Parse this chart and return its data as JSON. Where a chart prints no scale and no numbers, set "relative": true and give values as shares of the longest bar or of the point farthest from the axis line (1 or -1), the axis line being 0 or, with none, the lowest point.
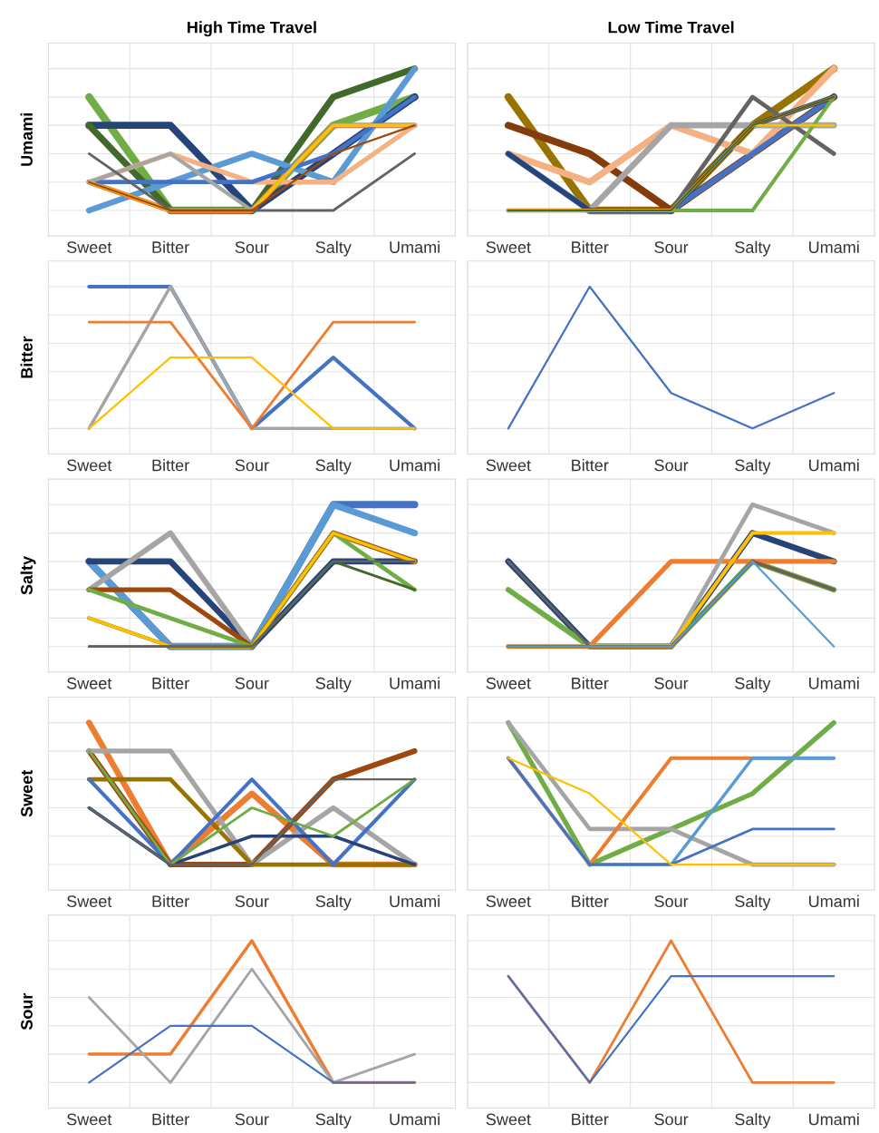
{
  "chart_data": [
    {
      "type": "line",
      "title": "High Time Travel",
      "ylabel": "Umami",
      "relative": true,
      "grid": true,
      "tick_labels": "x",
      "line_style": "solid",
      "categories": [
        "Sweet",
        "Bitter",
        "Sour",
        "Salty",
        "Umami"
      ],
      "series": [
        {
          "color": "#70ad47",
          "values": [
            0.8,
            0,
            0,
            0.6,
            0.8
          ]
        },
        {
          "color": "#264478",
          "values": [
            0.6,
            0.6,
            0,
            0.4,
            0.8
          ]
        },
        {
          "color": "#43682b",
          "values": [
            0.6,
            0,
            0,
            0.8,
            1
          ]
        },
        {
          "color": "#5b9bd5",
          "values": [
            0,
            0.2,
            0.4,
            0.2,
            1
          ]
        },
        {
          "color": "#ed7d31",
          "values": [
            0.2,
            0,
            0,
            0.6,
            0.6
          ]
        },
        {
          "color": "#f4b183",
          "values": [
            0.2,
            0.4,
            0.2,
            0.2,
            0.6
          ]
        },
        {
          "color": "#4472c4",
          "values": [
            0.2,
            0.2,
            0.2,
            0.4,
            0.8
          ]
        },
        {
          "color": "#a5a5a5",
          "values": [
            0.2,
            0.4,
            0,
            0.6,
            0.6
          ]
        },
        {
          "color": "#ffc000",
          "values": [
            0.2,
            0,
            0,
            0.6,
            0.6
          ]
        },
        {
          "color": "#636363",
          "values": [
            0.4,
            0,
            0,
            0,
            0.4
          ]
        },
        {
          "color": "#9e480e",
          "values": [
            0.2,
            0,
            0,
            0.4,
            0.6
          ]
        }
      ]
    },
    {
      "type": "line",
      "title": "Low Time Travel",
      "relative": true,
      "grid": true,
      "tick_labels": "x",
      "line_style": "solid",
      "categories": [
        "Sweet",
        "Bitter",
        "Sour",
        "Salty",
        "Umami"
      ],
      "series": [
        {
          "color": "#997300",
          "values": [
            0.8,
            0,
            0,
            0.6,
            1
          ]
        },
        {
          "color": "#843c0c",
          "values": [
            0.6,
            0.4,
            0,
            0.4,
            0.8
          ]
        },
        {
          "color": "#f4b183",
          "values": [
            0.4,
            0.2,
            0.6,
            0.4,
            1
          ]
        },
        {
          "color": "#a5a5a5",
          "values": [
            0.4,
            0,
            0.6,
            0.6,
            0.6
          ]
        },
        {
          "color": "#4472c4",
          "values": [
            0.4,
            0,
            0,
            0.4,
            0.8
          ]
        },
        {
          "color": "#264478",
          "values": [
            0.4,
            0,
            0,
            0.6,
            0.8
          ]
        },
        {
          "color": "#636363",
          "values": [
            0,
            0,
            0,
            0.8,
            0.4
          ]
        },
        {
          "color": "#70ad47",
          "values": [
            0,
            0,
            0,
            0,
            0.8
          ]
        },
        {
          "color": "#ed7d31",
          "values": [
            0,
            0,
            0,
            0.6,
            0.8
          ]
        },
        {
          "color": "#ffc000",
          "values": [
            0,
            0,
            0,
            0.6,
            0.6
          ]
        },
        {
          "color": "#43682b",
          "values": [
            0,
            0,
            0,
            0.6,
            0.8
          ]
        }
      ]
    },
    {
      "type": "line",
      "ylabel": "Bitter",
      "relative": true,
      "grid": true,
      "tick_labels": "x",
      "line_style": "solid",
      "categories": [
        "Sweet",
        "Bitter",
        "Sour",
        "Salty",
        "Umami"
      ],
      "series": [
        {
          "color": "#4472c4",
          "values": [
            1,
            1,
            0,
            0.5,
            0
          ]
        },
        {
          "color": "#a5a5a5",
          "values": [
            0,
            1,
            0,
            0,
            0
          ]
        },
        {
          "color": "#ed7d31",
          "values": [
            0.75,
            0.75,
            0,
            0.75,
            0.75
          ]
        },
        {
          "color": "#ffc000",
          "values": [
            0,
            0.5,
            0.5,
            0,
            0
          ]
        }
      ]
    },
    {
      "type": "line",
      "relative": true,
      "grid": true,
      "tick_labels": "x",
      "line_style": "solid",
      "categories": [
        "Sweet",
        "Bitter",
        "Sour",
        "Salty",
        "Umami"
      ],
      "series": [
        {
          "color": "#4472c4",
          "values": [
            0,
            1,
            0.25,
            0,
            0.25
          ]
        }
      ]
    },
    {
      "type": "line",
      "ylabel": "Salty",
      "relative": true,
      "grid": true,
      "tick_labels": "x",
      "line_style": "solid",
      "categories": [
        "Sweet",
        "Bitter",
        "Sour",
        "Salty",
        "Umami"
      ],
      "series": [
        {
          "color": "#4472c4",
          "values": [
            0.6,
            0,
            0,
            1,
            1
          ]
        },
        {
          "color": "#5b9bd5",
          "values": [
            0.6,
            0,
            0,
            1,
            0.8
          ]
        },
        {
          "color": "#264478",
          "values": [
            0.6,
            0.6,
            0,
            0.6,
            0.6
          ]
        },
        {
          "color": "#a5a5a5",
          "values": [
            0.4,
            0.8,
            0,
            0.8,
            0.6
          ]
        },
        {
          "color": "#9e480e",
          "values": [
            0.4,
            0.4,
            0,
            0.8,
            0.6
          ]
        },
        {
          "color": "#70ad47",
          "values": [
            0.4,
            0.2,
            0,
            0.8,
            0.4
          ]
        },
        {
          "color": "#997300",
          "values": [
            0.2,
            0,
            0,
            0.8,
            0.6
          ]
        },
        {
          "color": "#ffc000",
          "values": [
            0.2,
            0,
            0,
            0.8,
            0.6
          ]
        },
        {
          "color": "#43682b",
          "values": [
            0,
            0,
            0,
            0.6,
            0.4
          ]
        },
        {
          "color": "#636363",
          "values": [
            0,
            0,
            0,
            0.6,
            0.6
          ]
        }
      ]
    },
    {
      "type": "line",
      "relative": true,
      "grid": true,
      "tick_labels": "x",
      "line_style": "solid",
      "categories": [
        "Sweet",
        "Bitter",
        "Sour",
        "Salty",
        "Umami"
      ],
      "series": [
        {
          "color": "#264478",
          "values": [
            0.6,
            0,
            0,
            0.8,
            0.6
          ]
        },
        {
          "color": "#70ad47",
          "values": [
            0.4,
            0,
            0,
            0.6,
            0.4
          ]
        },
        {
          "color": "#ed7d31",
          "values": [
            0,
            0,
            0.6,
            0.6,
            0.6
          ]
        },
        {
          "color": "#a5a5a5",
          "values": [
            0,
            0,
            0,
            1,
            0.8
          ]
        },
        {
          "color": "#ffc000",
          "values": [
            0,
            0,
            0,
            0.8,
            0.8
          ]
        },
        {
          "color": "#9e480e",
          "values": [
            0,
            0,
            0,
            0.6,
            0.4
          ]
        },
        {
          "color": "#636363",
          "values": [
            0.6,
            0,
            0,
            0.6,
            0.4
          ]
        },
        {
          "color": "#5b9bd5",
          "values": [
            0,
            0,
            0,
            0.6,
            0
          ]
        }
      ]
    },
    {
      "type": "line",
      "ylabel": "Sweet",
      "relative": true,
      "grid": true,
      "tick_labels": "x",
      "line_style": "solid",
      "categories": [
        "Sweet",
        "Bitter",
        "Sour",
        "Salty",
        "Umami"
      ],
      "series": [
        {
          "color": "#ed7d31",
          "values": [
            1,
            0,
            0.5,
            0,
            0
          ]
        },
        {
          "color": "#9e480e",
          "values": [
            0.8,
            0,
            0,
            0.6,
            0.8
          ]
        },
        {
          "color": "#a5a5a5",
          "values": [
            0.8,
            0.8,
            0,
            0.4,
            0
          ]
        },
        {
          "color": "#997300",
          "values": [
            0.6,
            0.6,
            0,
            0,
            0
          ]
        },
        {
          "color": "#4472c4",
          "values": [
            0.6,
            0,
            0.6,
            0,
            0.6
          ]
        },
        {
          "color": "#264478",
          "values": [
            0.4,
            0,
            0.2,
            0.2,
            0
          ]
        },
        {
          "color": "#70ad47",
          "values": [
            0.8,
            0,
            0.4,
            0.2,
            0.6
          ]
        },
        {
          "color": "#636363",
          "values": [
            0.4,
            0,
            0,
            0.6,
            0.6
          ]
        }
      ]
    },
    {
      "type": "line",
      "relative": true,
      "grid": true,
      "tick_labels": "x",
      "line_style": "solid",
      "categories": [
        "Sweet",
        "Bitter",
        "Sour",
        "Salty",
        "Umami"
      ],
      "series": [
        {
          "color": "#70ad47",
          "values": [
            1,
            0,
            0.25,
            0.5,
            1
          ]
        },
        {
          "color": "#a5a5a5",
          "values": [
            1,
            0.25,
            0.25,
            0,
            0
          ]
        },
        {
          "color": "#ed7d31",
          "values": [
            0.75,
            0,
            0.75,
            0.75,
            0.75
          ]
        },
        {
          "color": "#5b9bd5",
          "values": [
            0.75,
            0,
            0,
            0.75,
            0.75
          ]
        },
        {
          "color": "#4472c4",
          "values": [
            0.75,
            0,
            0,
            0.25,
            0.25
          ]
        },
        {
          "color": "#ffc000",
          "values": [
            0.75,
            0.5,
            0,
            0,
            0
          ]
        }
      ]
    },
    {
      "type": "line",
      "ylabel": "Sour",
      "relative": true,
      "grid": true,
      "tick_labels": "x",
      "line_style": "solid",
      "categories": [
        "Sweet",
        "Bitter",
        "Sour",
        "Salty",
        "Umami"
      ],
      "series": [
        {
          "color": "#ed7d31",
          "values": [
            0.2,
            0.2,
            1,
            0,
            0
          ]
        },
        {
          "color": "#a5a5a5",
          "values": [
            0.6,
            0,
            0.8,
            0,
            0.2
          ]
        },
        {
          "color": "#4472c4",
          "values": [
            0,
            0.4,
            0.4,
            0,
            0
          ]
        }
      ]
    },
    {
      "type": "line",
      "relative": true,
      "grid": true,
      "tick_labels": "x",
      "line_style": "solid",
      "categories": [
        "Sweet",
        "Bitter",
        "Sour",
        "Salty",
        "Umami"
      ],
      "series": [
        {
          "color": "#ed7d31",
          "values": [
            0.75,
            0,
            1,
            0,
            0
          ]
        },
        {
          "color": "#4472c4",
          "values": [
            0.75,
            0,
            0.75,
            0.75,
            0.75
          ]
        }
      ]
    }
  ]
}
